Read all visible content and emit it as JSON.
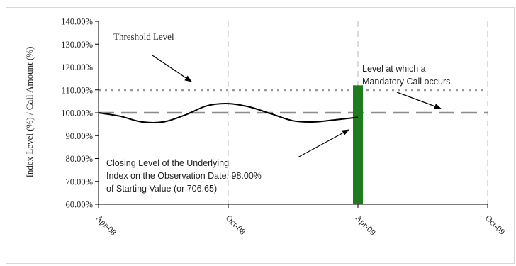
{
  "chart_data": {
    "type": "line",
    "xlabel": "",
    "ylabel": "Index Level (%) / Call Amount (%)",
    "y_ticks": [
      "60.00%",
      "70.00%",
      "80.00%",
      "90.00%",
      "100.00%",
      "110.00%",
      "120.00%",
      "130.00%",
      "140.00%"
    ],
    "ylim": [
      60,
      140
    ],
    "x_ticks": [
      "Apr-08",
      "Oct-08",
      "Apr-09",
      "Oct-09"
    ],
    "xlim": [
      0,
      18
    ],
    "grid": "vertical dashed",
    "index_line": {
      "x": [
        0,
        1,
        2,
        3,
        4,
        5,
        6,
        7,
        8,
        9,
        10,
        11,
        12
      ],
      "y": [
        100,
        98.5,
        96,
        96,
        99,
        103,
        104,
        102.5,
        99.5,
        96.5,
        96,
        97,
        98
      ]
    },
    "threshold_level": {
      "value": 110,
      "style": "dotted",
      "color": "#999999"
    },
    "starting_level": {
      "value": 100,
      "style": "dashed",
      "color": "#8c8c8c"
    },
    "mandatory_call_bar": {
      "x": 12,
      "value": 112,
      "color": "#1e7b1e"
    },
    "annotations": {
      "threshold": "Threshold Level",
      "call_line1": "Level at which a",
      "call_line2": "Mandatory Call occurs",
      "closing_line1": "Closing Level of the Underlying",
      "closing_line2": "Index on the Observation Date: 98.00%",
      "closing_line3": "of Starting Value (or 706.65)"
    }
  }
}
